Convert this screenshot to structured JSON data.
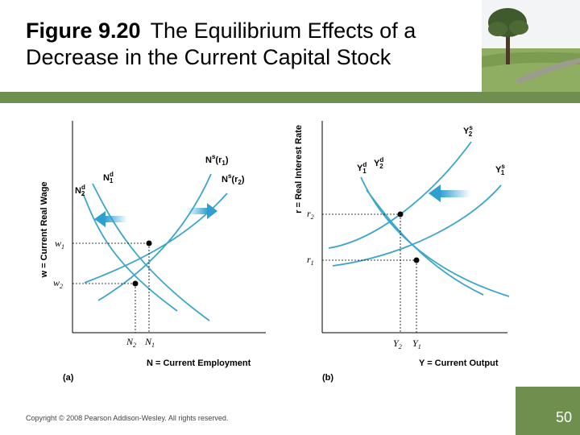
{
  "title": {
    "figure_number": "Figure 9.20",
    "text": "The Equilibrium Effects of a Decrease in the Current Capital Stock"
  },
  "panel_a": {
    "tag": "(a)",
    "x_axis_label": "N = Current Employment",
    "y_axis_label": "w = Current Real Wage",
    "curves": {
      "nd1": "N1d",
      "nd2": "N2d",
      "ns1": "Ns(r1)",
      "ns2": "Ns(r2)"
    },
    "ticks": {
      "w1": "w1",
      "w2": "w2",
      "n1": "N1",
      "n2": "N2"
    }
  },
  "panel_b": {
    "tag": "(b)",
    "x_axis_label": "Y = Current Output",
    "y_axis_label": "r = Real Interest Rate",
    "curves": {
      "yd1": "Y1d",
      "yd2": "Y2d",
      "ys1": "Y1s",
      "ys2": "Y2s"
    },
    "ticks": {
      "r1": "r1",
      "r2": "r2",
      "y1": "Y1",
      "y2": "Y2"
    }
  },
  "footer": {
    "copyright": "Copyright © 2008 Pearson Addison-Wesley. All rights reserved.",
    "page_number": "50"
  },
  "colors": {
    "curve": "#3aa6c8",
    "arrow": "#2f9fd0",
    "band": "#6f8f4e"
  }
}
